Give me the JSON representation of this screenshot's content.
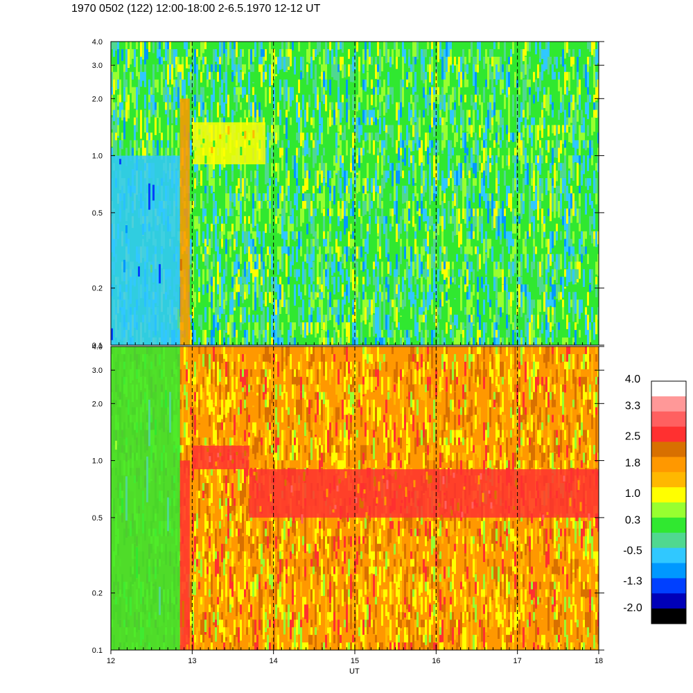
{
  "chart_data": {
    "type": "heatmap",
    "title": "1970 0502 (122) 12:00-18:00 2-6.5.1970  12-12 UT",
    "xlabel": "UT",
    "xlim": [
      12,
      18
    ],
    "x_ticks": [
      "12",
      "13",
      "14",
      "15",
      "16",
      "17",
      "18"
    ],
    "x_tick_values": [
      12,
      13,
      14,
      15,
      16,
      17,
      18
    ],
    "dashed_vertical_lines_at": [
      13,
      14,
      15,
      16,
      17
    ],
    "panels": [
      {
        "name": "upper-panel",
        "y_scale": "log",
        "ylim": [
          0.1,
          4.0
        ],
        "y_ticks": [
          "4.0",
          "3.0",
          "2.0",
          "1.0",
          "0.5",
          "0.2",
          "0.1"
        ],
        "y_tick_values": [
          4.0,
          3.0,
          2.0,
          1.0,
          0.5,
          0.2,
          0.1
        ],
        "dominant_level": 0.3,
        "features": [
          {
            "x_range": [
              12.0,
              12.85
            ],
            "y_range": [
              0.1,
              1.0
            ],
            "level": -0.5
          },
          {
            "x_range": [
              12.85,
              12.97
            ],
            "y_range": [
              0.1,
              2.0
            ],
            "level": 1.8
          },
          {
            "x_range": [
              13.0,
              13.9
            ],
            "y_range": [
              0.9,
              1.5
            ],
            "level": 1.0
          }
        ]
      },
      {
        "name": "lower-panel",
        "y_scale": "log",
        "ylim": [
          0.1,
          4.0
        ],
        "y_ticks": [
          "4.0",
          "3.0",
          "2.0",
          "1.0",
          "0.5",
          "0.2",
          "0.1"
        ],
        "y_tick_values": [
          4.0,
          3.0,
          2.0,
          1.0,
          0.5,
          0.2,
          0.1
        ],
        "dominant_level": 1.8,
        "features": [
          {
            "x_range": [
              12.0,
              12.85
            ],
            "y_range": [
              0.1,
              4.0
            ],
            "level": 0.3
          },
          {
            "x_range": [
              12.85,
              12.97
            ],
            "y_range": [
              0.1,
              1.0
            ],
            "level": 2.5
          },
          {
            "x_range": [
              13.0,
              13.7
            ],
            "y_range": [
              0.9,
              1.2
            ],
            "level": 2.5
          },
          {
            "x_range": [
              13.7,
              18.0
            ],
            "y_range": [
              0.5,
              0.9
            ],
            "level": 2.5
          }
        ]
      }
    ],
    "colorbar": {
      "labels": [
        "4.0",
        "3.3",
        "2.5",
        "1.8",
        "1.0",
        "0.3",
        "-0.5",
        "-1.3",
        "-2.0"
      ],
      "label_values": [
        4.0,
        3.3,
        2.5,
        1.8,
        1.0,
        0.3,
        -0.5,
        -1.3,
        -2.0
      ],
      "colors_top_to_bottom": [
        "#ffffff",
        "#ff9898",
        "#ff6060",
        "#ff3030",
        "#d87000",
        "#ff9800",
        "#ffb800",
        "#ffff00",
        "#98ff30",
        "#30e830",
        "#50d890",
        "#30c8ff",
        "#0098ff",
        "#0040ff",
        "#0000b8",
        "#000000"
      ]
    }
  }
}
